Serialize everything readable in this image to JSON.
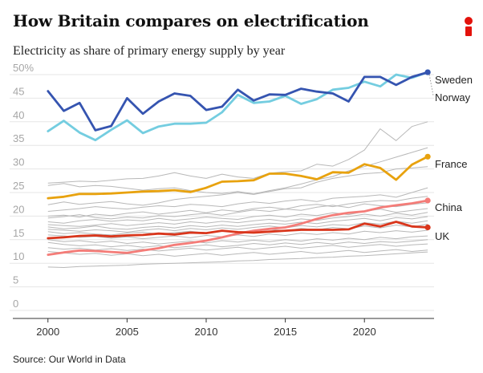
{
  "header": {
    "title": "How Britain compares on electrification",
    "subtitle": "Electricity as share of primary energy supply by year"
  },
  "footer": {
    "source": "Source: Our World in Data"
  },
  "brand": {
    "logo_icon": "i-logo-icon",
    "accent": "#e3120b"
  },
  "chart_data": {
    "type": "line",
    "title": "How Britain compares on electrification",
    "subtitle": "Electricity as share of primary energy supply by year",
    "xlabel": "",
    "ylabel": "",
    "xlim": [
      1999.1,
      2024.4
    ],
    "ylim": [
      0,
      50
    ],
    "x_ticks": [
      2000,
      2005,
      2010,
      2015,
      2020
    ],
    "y_ticks": [
      0,
      5,
      10,
      15,
      20,
      25,
      30,
      35,
      40,
      45,
      50
    ],
    "y_tick_labels": [
      "0",
      "5",
      "10",
      "15",
      "20",
      "25",
      "30",
      "35",
      "40",
      "45",
      "50%"
    ],
    "grid": true,
    "legend": "direct labels at line ends",
    "x": [
      2000,
      2001,
      2002,
      2003,
      2004,
      2005,
      2006,
      2007,
      2008,
      2009,
      2010,
      2011,
      2012,
      2013,
      2014,
      2015,
      2016,
      2017,
      2018,
      2019,
      2020,
      2021,
      2022,
      2023,
      2024
    ],
    "series": [
      {
        "name": "Sweden",
        "color": "#3554b0",
        "label": "Sweden",
        "values": [
          46.5,
          42.3,
          44.0,
          38.2,
          39.1,
          45.0,
          41.7,
          44.3,
          46.0,
          45.5,
          42.5,
          43.2,
          46.8,
          44.5,
          45.8,
          45.7,
          47.0,
          46.4,
          46.0,
          44.3,
          49.5,
          49.5,
          47.8,
          49.5,
          50.5
        ]
      },
      {
        "name": "Norway",
        "color": "#74cde0",
        "label": "Norway",
        "values": [
          38.0,
          40.2,
          37.7,
          36.1,
          38.3,
          40.3,
          37.6,
          39.0,
          39.6,
          39.6,
          39.8,
          42.0,
          45.7,
          44.0,
          44.3,
          45.5,
          43.8,
          44.8,
          46.8,
          47.2,
          48.5,
          47.5,
          50.0,
          49.3,
          50.5
        ]
      },
      {
        "name": "France",
        "color": "#e8a20e",
        "label": "France",
        "values": [
          23.8,
          24.1,
          24.7,
          24.7,
          24.8,
          25.0,
          25.2,
          25.3,
          25.5,
          25.1,
          26.0,
          27.3,
          27.4,
          27.6,
          29.0,
          29.0,
          28.5,
          27.8,
          29.3,
          29.2,
          31.0,
          30.2,
          27.7,
          30.9,
          32.6
        ]
      },
      {
        "name": "China",
        "color": "#f47c78",
        "label": "China",
        "values": [
          11.8,
          12.3,
          12.7,
          12.6,
          12.4,
          12.2,
          12.7,
          13.2,
          13.9,
          14.3,
          14.8,
          15.5,
          16.3,
          16.9,
          17.3,
          17.6,
          18.4,
          19.4,
          20.2,
          20.7,
          21.0,
          21.8,
          22.3,
          22.7,
          23.3
        ]
      },
      {
        "name": "UK",
        "color": "#d9361c",
        "label": "UK",
        "values": [
          15.3,
          15.5,
          15.8,
          15.9,
          15.7,
          15.9,
          16.0,
          16.3,
          16.1,
          16.5,
          16.4,
          16.9,
          16.6,
          16.5,
          16.7,
          16.9,
          17.1,
          17.1,
          17.1,
          17.2,
          18.4,
          17.8,
          18.8,
          17.8,
          17.6
        ]
      },
      {
        "name": "",
        "color": "#b8b8b8",
        "values": [
          27.0,
          27.2,
          27.4,
          27.3,
          27.6,
          27.9,
          28.0,
          28.5,
          29.2,
          28.5,
          28.0,
          28.9,
          28.3,
          28.0,
          29.1,
          29.4,
          29.6,
          31.0,
          30.6,
          32.0,
          34.0,
          38.5,
          36.0,
          39.0,
          40.0
        ]
      },
      {
        "name": "",
        "color": "#b8b8b8",
        "values": [
          26.5,
          26.9,
          26.2,
          26.5,
          26.3,
          25.9,
          25.5,
          25.8,
          26.0,
          25.4,
          25.0,
          24.8,
          25.2,
          24.7,
          25.4,
          26.0,
          26.8,
          27.7,
          28.4,
          29.6,
          30.5,
          31.5,
          32.5,
          33.5,
          34.5
        ]
      },
      {
        "name": "",
        "color": "#b8b8b8",
        "values": [
          22.4,
          23.0,
          22.5,
          22.8,
          23.1,
          22.6,
          22.3,
          22.8,
          23.5,
          23.9,
          24.2,
          24.5,
          25.0,
          24.6,
          25.2,
          25.8,
          26.0,
          27.2,
          28.0,
          28.5,
          29.0,
          29.2,
          30.0,
          30.2,
          30.5
        ]
      },
      {
        "name": "",
        "color": "#b8b8b8",
        "values": [
          21.0,
          21.3,
          21.6,
          22.0,
          21.7,
          21.5,
          21.9,
          22.2,
          22.0,
          22.5,
          22.3,
          22.0,
          22.6,
          23.0,
          22.7,
          23.2,
          23.5,
          23.1,
          23.8,
          24.0,
          24.2,
          24.5,
          24.0,
          25.0,
          26.0
        ]
      },
      {
        "name": "",
        "color": "#b8b8b8",
        "values": [
          20.0,
          20.2,
          19.8,
          20.4,
          20.1,
          20.6,
          20.9,
          20.4,
          20.8,
          21.2,
          20.7,
          21.3,
          21.0,
          21.6,
          21.9,
          21.5,
          22.2,
          22.5,
          22.0,
          22.6,
          23.0,
          23.3,
          23.2,
          23.8,
          24.2
        ]
      },
      {
        "name": "",
        "color": "#b8b8b8",
        "values": [
          19.6,
          19.9,
          20.3,
          19.7,
          19.4,
          19.8,
          19.6,
          20.1,
          19.9,
          20.3,
          20.6,
          20.2,
          20.8,
          21.3,
          21.0,
          21.5,
          21.2,
          21.9,
          22.3,
          21.8,
          22.6,
          22.2,
          22.0,
          22.5,
          22.8
        ]
      },
      {
        "name": "",
        "color": "#b8b8b8",
        "values": [
          18.8,
          18.5,
          19.0,
          19.3,
          18.9,
          19.2,
          19.0,
          19.5,
          19.1,
          19.4,
          19.8,
          19.5,
          19.3,
          19.9,
          20.2,
          19.8,
          20.4,
          20.1,
          20.7,
          20.3,
          21.0,
          21.5,
          20.8,
          21.2,
          21.6
        ]
      },
      {
        "name": "",
        "color": "#b8b8b8",
        "values": [
          18.2,
          18.0,
          17.8,
          18.1,
          18.4,
          18.0,
          18.3,
          18.6,
          18.3,
          18.8,
          18.5,
          18.9,
          18.6,
          19.0,
          19.3,
          18.9,
          19.4,
          19.1,
          19.6,
          19.9,
          20.4,
          20.0,
          20.6,
          20.2,
          20.8
        ]
      },
      {
        "name": "",
        "color": "#b8b8b8",
        "values": [
          17.7,
          17.3,
          17.5,
          17.9,
          17.4,
          17.2,
          17.6,
          17.8,
          17.5,
          18.0,
          17.7,
          18.1,
          17.8,
          18.2,
          18.5,
          18.3,
          18.7,
          18.4,
          18.9,
          19.2,
          19.5,
          19.0,
          19.7,
          19.4,
          19.9
        ]
      },
      {
        "name": "",
        "color": "#b8b8b8",
        "values": [
          17.2,
          17.0,
          16.8,
          17.1,
          16.9,
          16.6,
          17.0,
          17.3,
          16.9,
          17.4,
          17.1,
          17.5,
          17.2,
          17.6,
          17.9,
          17.5,
          18.0,
          17.7,
          18.2,
          18.0,
          18.6,
          18.3,
          18.9,
          18.5,
          19.0
        ]
      },
      {
        "name": "",
        "color": "#b8b8b8",
        "values": [
          16.7,
          16.3,
          16.5,
          16.2,
          16.0,
          16.4,
          16.6,
          16.2,
          16.5,
          16.8,
          16.4,
          16.9,
          16.6,
          16.9,
          17.2,
          16.9,
          17.4,
          17.1,
          17.6,
          17.3,
          17.9,
          17.5,
          18.1,
          17.7,
          18.3
        ]
      },
      {
        "name": "",
        "color": "#b8b8b8",
        "values": [
          16.0,
          15.8,
          15.5,
          15.7,
          15.3,
          15.6,
          15.2,
          15.5,
          15.8,
          15.4,
          15.9,
          15.6,
          16.0,
          15.7,
          16.2,
          15.9,
          16.4,
          16.1,
          16.5,
          16.2,
          16.8,
          16.5,
          16.9,
          16.6,
          17.0
        ]
      },
      {
        "name": "",
        "color": "#b8b8b8",
        "values": [
          15.0,
          14.6,
          14.8,
          14.4,
          14.7,
          14.2,
          14.5,
          14.1,
          14.4,
          14.7,
          14.3,
          14.8,
          14.5,
          14.9,
          14.6,
          15.0,
          14.7,
          15.2,
          14.9,
          15.3,
          15.0,
          15.5,
          15.2,
          15.6,
          15.8
        ]
      },
      {
        "name": "",
        "color": "#b8b8b8",
        "values": [
          14.4,
          14.0,
          13.7,
          13.9,
          13.5,
          13.8,
          13.4,
          13.7,
          13.3,
          13.6,
          13.9,
          13.5,
          13.8,
          14.2,
          13.9,
          14.3,
          14.0,
          14.4,
          14.1,
          14.5,
          14.2,
          14.6,
          14.4,
          14.7,
          15.0
        ]
      },
      {
        "name": "",
        "color": "#b8b8b8",
        "values": [
          13.3,
          13.0,
          13.2,
          12.8,
          13.1,
          12.7,
          13.0,
          12.6,
          12.9,
          13.2,
          12.8,
          13.1,
          13.4,
          13.0,
          13.3,
          13.6,
          13.2,
          13.5,
          13.8,
          13.4,
          13.7,
          14.0,
          13.6,
          13.9,
          14.1
        ]
      },
      {
        "name": "",
        "color": "#b8b8b8",
        "values": [
          12.5,
          12.2,
          11.9,
          12.1,
          11.7,
          12.0,
          11.6,
          11.9,
          11.5,
          11.8,
          12.1,
          11.7,
          12.0,
          12.3,
          11.9,
          12.2,
          12.5,
          12.1,
          12.4,
          12.7,
          12.3,
          12.6,
          12.9,
          12.5,
          12.8
        ]
      },
      {
        "name": "",
        "color": "#b8b8b8",
        "values": [
          9.2,
          9.1,
          9.3,
          9.4,
          9.5,
          9.6,
          9.8,
          9.9,
          10.0,
          10.1,
          10.2,
          10.3,
          10.5,
          10.6,
          10.8,
          10.9,
          11.0,
          11.2,
          11.3,
          11.5,
          11.6,
          11.8,
          12.0,
          12.2,
          12.4
        ]
      }
    ]
  }
}
